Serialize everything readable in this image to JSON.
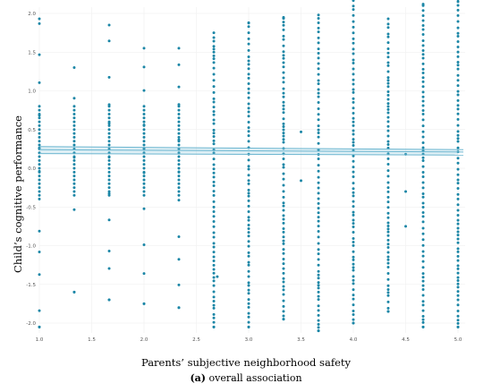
{
  "chart_data": {
    "type": "scatter",
    "xlabel": "Parents’ subjective neighborhood safety",
    "ylabel": "Child’s cognitive performance",
    "caption": {
      "panel": "(a)",
      "text": "overall association"
    },
    "xlim": [
      1.0,
      5.0
    ],
    "ylim": [
      -2.1,
      2.2
    ],
    "xticks": [
      "1.0",
      "1.5",
      "2.0",
      "2.5",
      "3.0",
      "3.5",
      "4.0",
      "4.5",
      "5.0"
    ],
    "yticks": [
      "2.0",
      "1.5",
      "1.0",
      "0.5",
      "0.0",
      "-0.5",
      "-1.0",
      "-1.5",
      "-2.0"
    ],
    "point_color": "#1b86a6",
    "line_color": "#6cb6d0",
    "grid": true,
    "columns": [
      {
        "x": 1.0,
        "ymin": -2.05,
        "ymax": 1.93,
        "density": "medium"
      },
      {
        "x": 1.333,
        "ymin": -1.6,
        "ymax": 1.3,
        "density": "low"
      },
      {
        "x": 1.667,
        "ymin": -1.7,
        "ymax": 1.85,
        "density": "medium"
      },
      {
        "x": 2.0,
        "ymin": -1.75,
        "ymax": 1.55,
        "density": "medium"
      },
      {
        "x": 2.333,
        "ymin": -1.8,
        "ymax": 1.55,
        "density": "medium"
      },
      {
        "x": 2.667,
        "ymin": -2.05,
        "ymax": 1.75,
        "density": "high"
      },
      {
        "x": 3.0,
        "ymin": -2.05,
        "ymax": 1.88,
        "density": "high"
      },
      {
        "x": 3.333,
        "ymin": -1.95,
        "ymax": 1.95,
        "density": "high"
      },
      {
        "x": 3.667,
        "ymin": -2.1,
        "ymax": 1.98,
        "density": "high"
      },
      {
        "x": 4.0,
        "ymin": -2.0,
        "ymax": 2.18,
        "density": "high"
      },
      {
        "x": 4.333,
        "ymin": -1.85,
        "ymax": 1.93,
        "density": "high"
      },
      {
        "x": 4.667,
        "ymin": -2.05,
        "ymax": 2.12,
        "density": "high"
      },
      {
        "x": 5.0,
        "ymin": -2.05,
        "ymax": 2.18,
        "density": "high"
      }
    ],
    "outliers": [
      {
        "x": 2.7,
        "y": -1.4
      },
      {
        "x": 3.5,
        "y": 0.47
      },
      {
        "x": 3.5,
        "y": -0.16
      },
      {
        "x": 4.5,
        "y": 0.18
      },
      {
        "x": 4.5,
        "y": -0.3
      },
      {
        "x": 4.5,
        "y": -0.75
      }
    ],
    "regression": {
      "lines": [
        {
          "x": [
            1.0,
            5.0
          ],
          "y": [
            0.28,
            0.24
          ]
        },
        {
          "x": [
            1.0,
            5.0
          ],
          "y": [
            0.24,
            0.21
          ]
        },
        {
          "x": [
            1.0,
            5.0
          ],
          "y": [
            0.19,
            0.17
          ]
        }
      ]
    },
    "marginal_histogram": {
      "side": "right",
      "bins_center": 0.2,
      "spread": 0.6
    }
  }
}
